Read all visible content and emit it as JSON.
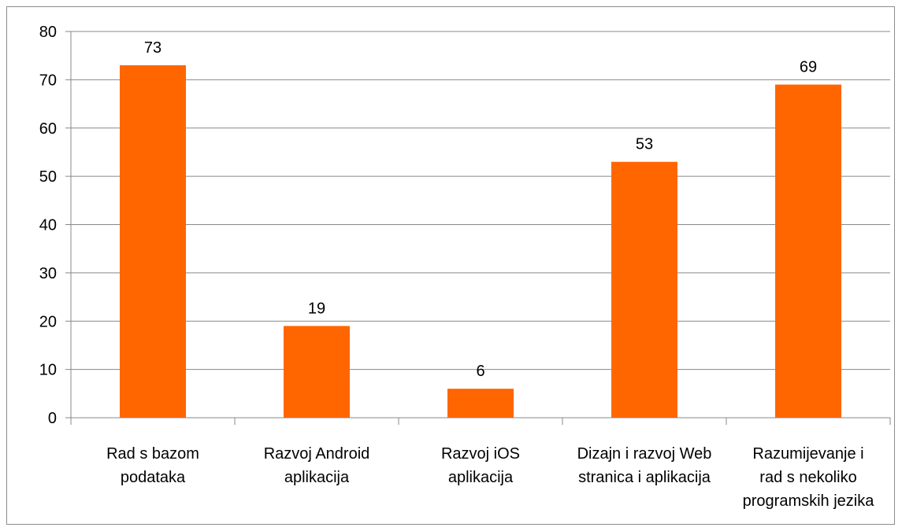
{
  "chart_data": {
    "type": "bar",
    "title": "",
    "xlabel": "",
    "ylabel": "",
    "categories": [
      [
        "Rad s bazom",
        "podataka"
      ],
      [
        "Razvoj Android",
        "aplikacija"
      ],
      [
        "Razvoj iOS",
        "aplikacija"
      ],
      [
        "Dizajn i razvoj Web",
        "stranica i aplikacija"
      ],
      [
        "Razumijevanje i",
        "rad s nekoliko",
        "programskih jezika"
      ]
    ],
    "values": [
      73,
      19,
      6,
      53,
      69
    ],
    "data_labels": [
      "73",
      "19",
      "6",
      "53",
      "69"
    ],
    "ylim": [
      0,
      80
    ],
    "yticks": [
      0,
      10,
      20,
      30,
      40,
      50,
      60,
      70,
      80
    ],
    "grid": true,
    "legend": "none",
    "colors": {
      "bar": "#FF6600",
      "grid": "#888888",
      "axis": "#888888",
      "text": "#000000"
    }
  }
}
